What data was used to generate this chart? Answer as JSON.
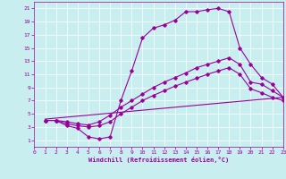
{
  "xlabel": "Windchill (Refroidissement éolien,°C)",
  "background_color": "#c8eef0",
  "line_color": "#990099",
  "xlim": [
    0,
    23
  ],
  "ylim": [
    0,
    22
  ],
  "xticks": [
    0,
    1,
    2,
    3,
    4,
    5,
    6,
    7,
    8,
    9,
    10,
    11,
    12,
    13,
    14,
    15,
    16,
    17,
    18,
    19,
    20,
    21,
    22,
    23
  ],
  "yticks": [
    1,
    3,
    5,
    7,
    9,
    11,
    13,
    15,
    17,
    19,
    21
  ],
  "grid_color": "#aad8dc",
  "line1_x": [
    1,
    2,
    3,
    4,
    5,
    6,
    7,
    8,
    9,
    10,
    11,
    12,
    13,
    14,
    15,
    16,
    17,
    18,
    19,
    20,
    21,
    22,
    23
  ],
  "line1_y": [
    4,
    4,
    3.2,
    2.8,
    1.5,
    1.2,
    1.5,
    7.0,
    11.5,
    16.5,
    18.0,
    18.5,
    19.2,
    20.5,
    20.5,
    20.8,
    21.0,
    20.5,
    15.0,
    12.5,
    10.5,
    9.5,
    7.5
  ],
  "line2_x": [
    1,
    2,
    3,
    4,
    5,
    6,
    7,
    8,
    9,
    10,
    11,
    12,
    13,
    14,
    15,
    16,
    17,
    18,
    19,
    20,
    21,
    22,
    23
  ],
  "line2_y": [
    4,
    4,
    3.8,
    3.5,
    3.3,
    3.8,
    4.8,
    6.0,
    7.0,
    8.0,
    9.0,
    9.8,
    10.5,
    11.2,
    12.0,
    12.5,
    13.0,
    13.5,
    12.5,
    9.8,
    9.5,
    8.5,
    7.5
  ],
  "line3_x": [
    1,
    2,
    3,
    4,
    5,
    6,
    7,
    8,
    9,
    10,
    11,
    12,
    13,
    14,
    15,
    16,
    17,
    18,
    19,
    20,
    21,
    22,
    23
  ],
  "line3_y": [
    4,
    4,
    3.5,
    3.2,
    3.0,
    3.2,
    3.8,
    5.0,
    6.0,
    7.0,
    7.8,
    8.5,
    9.2,
    9.8,
    10.4,
    11.0,
    11.5,
    12.0,
    11.0,
    8.8,
    8.2,
    7.5,
    7.0
  ],
  "line4_x": [
    1,
    23
  ],
  "line4_y": [
    4.2,
    7.5
  ]
}
